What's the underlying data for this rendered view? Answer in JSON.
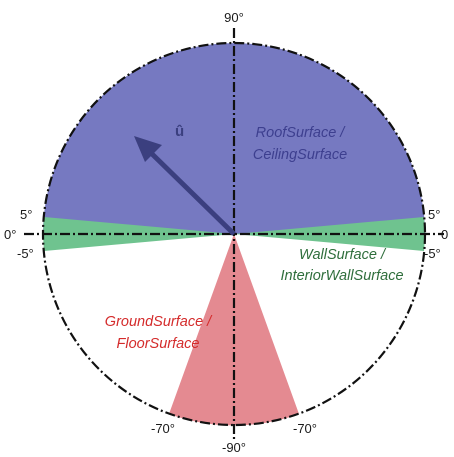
{
  "angles": {
    "top": "90°",
    "bottom": "-90°",
    "left_zero": "0°",
    "right_zero": "0",
    "left_plus5": "5°",
    "left_minus5": "-5°",
    "right_plus5": "5°",
    "right_minus5": "-5°",
    "bottom_left_70": "-70°",
    "bottom_right_70": "-70°"
  },
  "vector": {
    "label": "û"
  },
  "regions": {
    "roof": {
      "line1": "RoofSurface /",
      "line2": "CeilingSurface",
      "color": "#7679c1",
      "text_color": "#3d3f8f"
    },
    "wall": {
      "line1": "WallSurface /",
      "line2": "InteriorWallSurface",
      "color": "#6fc38f",
      "text_color": "#2f6e3c"
    },
    "ground": {
      "line1": "GroundSurface /",
      "line2": "FloorSurface",
      "color": "#e48a91",
      "text_color": "#d42b2b"
    }
  },
  "colors": {
    "arrow": "#3b3f7f",
    "outline": "#111111"
  }
}
